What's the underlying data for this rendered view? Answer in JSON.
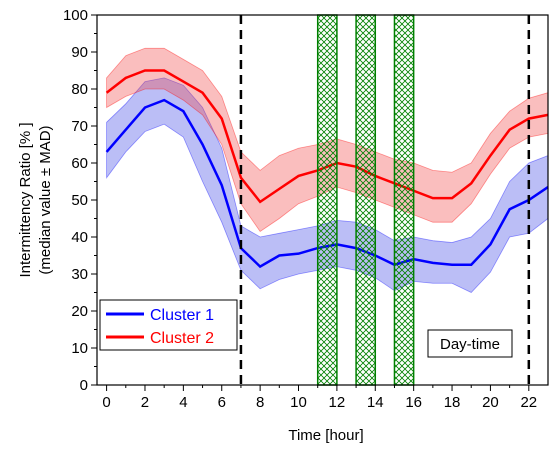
{
  "chart_data": {
    "type": "line",
    "x": [
      0,
      1,
      2,
      3,
      4,
      5,
      6,
      7,
      8,
      9,
      10,
      11,
      12,
      13,
      14,
      15,
      16,
      17,
      18,
      19,
      20,
      21,
      22,
      23
    ],
    "xlabel": "Time [hour]",
    "ylabel": [
      "Intermittency Ratio [% ]",
      "(median value ± MAD)"
    ],
    "xlim": [
      -0.5,
      23
    ],
    "ylim": [
      0,
      100
    ],
    "xticks": [
      0,
      2,
      4,
      6,
      8,
      10,
      12,
      14,
      16,
      18,
      20,
      22
    ],
    "yticks": [
      0,
      10,
      20,
      30,
      40,
      50,
      60,
      70,
      80,
      90,
      100
    ],
    "series": [
      {
        "name": "Cluster 1",
        "color": "#0000ff",
        "band_color": "rgba(60,70,230,0.35)",
        "values": [
          63,
          69,
          75,
          77,
          74,
          65,
          54,
          37,
          32,
          35,
          35.5,
          37,
          38,
          37,
          35,
          32.5,
          34,
          33,
          32.5,
          32.5,
          38,
          47.5,
          50,
          53.5
        ],
        "upper": [
          71,
          76,
          82,
          83,
          81,
          75,
          64,
          43,
          40,
          41,
          42,
          43,
          44.5,
          44,
          42,
          39,
          40,
          39,
          38.5,
          40,
          45,
          55,
          60,
          62
        ],
        "lower": [
          56,
          63,
          68.5,
          70.5,
          67,
          55,
          44,
          31,
          26,
          28.5,
          30,
          31,
          32,
          31,
          29,
          25.5,
          28,
          27.5,
          27.5,
          25,
          30.5,
          40,
          41,
          45
        ]
      },
      {
        "name": "Cluster 2",
        "color": "#ff0000",
        "band_color": "rgba(240,70,70,0.35)",
        "values": [
          79,
          83,
          85,
          85,
          82,
          79,
          72,
          56,
          49.5,
          53,
          56.5,
          58,
          60,
          59,
          56.5,
          54.5,
          52.5,
          50.5,
          50.5,
          54.5,
          62,
          69,
          72,
          73
        ],
        "upper": [
          83,
          89,
          91,
          91,
          88,
          85,
          78,
          63,
          58,
          62,
          64,
          65,
          66.5,
          65,
          63,
          61,
          60,
          58,
          57.5,
          60,
          68,
          74,
          77.5,
          79
        ],
        "lower": [
          75,
          78,
          80,
          80,
          77,
          73,
          65,
          49,
          41.5,
          45,
          49,
          51,
          53.5,
          52,
          50,
          48,
          46,
          44,
          44,
          49,
          57,
          64,
          67,
          68
        ]
      }
    ],
    "shaded_regions": [
      [
        11,
        12
      ],
      [
        13,
        14
      ],
      [
        15,
        16
      ]
    ],
    "shaded_color": "#008000",
    "vlines": [
      7,
      22
    ],
    "annotation": "Day-time",
    "legend": "lower left"
  }
}
